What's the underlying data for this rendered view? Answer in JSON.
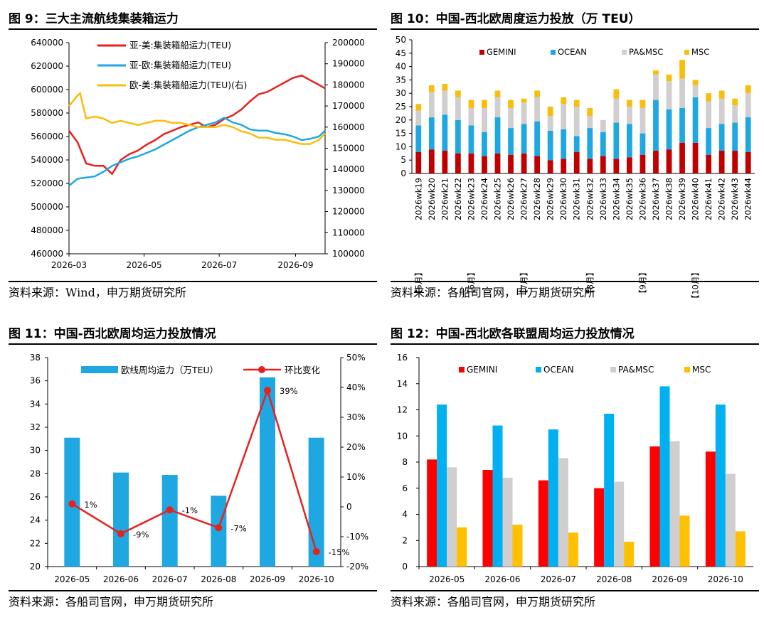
{
  "panels": [
    {
      "title": "图 9：三大主流航线集装箱运力",
      "source": "资料来源：Wind，申万期货研究所"
    },
    {
      "title": "图 10：中国-西北欧周度运力投放（万 TEU）",
      "source": "资料来源：各船司官网，申万期货研究所"
    },
    {
      "title": "图 11：中国-西北欧周均运力投放情况",
      "source": "资料来源：各船司官网，申万期货研究所"
    },
    {
      "title": "图 12：中国-西北欧各联盟周均运力投放情况",
      "source": "资料来源：各船司官网，申万期货研究所"
    }
  ],
  "chart_data": [
    {
      "type": "line",
      "x_ticks": [
        "2026-03",
        "2026-05",
        "2026-07",
        "2026-09"
      ],
      "x_range": [
        "2026-03",
        "2026-09-25"
      ],
      "ylim": [
        460000,
        640000
      ],
      "yticks": [
        "460000",
        "480000",
        "500000",
        "520000",
        "540000",
        "560000",
        "580000",
        "600000",
        "620000",
        "640000"
      ],
      "y2lim": [
        100000,
        200000
      ],
      "y2ticks": [
        "100000",
        "110000",
        "120000",
        "130000",
        "140000",
        "150000",
        "160000",
        "170000",
        "180000",
        "190000",
        "200000"
      ],
      "legend_position": "top-left",
      "grid": false,
      "series": [
        {
          "name": "亚-美:集装箱船运力(TEU)",
          "color": "#E8211D",
          "axis": "left",
          "x": [
            "2026-03-01",
            "2026-03-08",
            "2026-03-15",
            "2026-03-22",
            "2026-03-29",
            "2026-04-05",
            "2026-04-12",
            "2026-04-19",
            "2026-04-26",
            "2026-05-03",
            "2026-05-10",
            "2026-05-17",
            "2026-05-24",
            "2026-05-31",
            "2026-06-07",
            "2026-06-14",
            "2026-06-21",
            "2026-06-28",
            "2026-07-05",
            "2026-07-12",
            "2026-07-19",
            "2026-07-26",
            "2026-08-02",
            "2026-08-09",
            "2026-08-16",
            "2026-08-23",
            "2026-08-30",
            "2026-09-06",
            "2026-09-13",
            "2026-09-20",
            "2026-09-25"
          ],
          "y": [
            565000,
            555000,
            537000,
            535000,
            535000,
            528000,
            540000,
            545000,
            548000,
            553000,
            557000,
            562000,
            565000,
            568000,
            570000,
            572000,
            568000,
            570000,
            575000,
            578000,
            583000,
            590000,
            596000,
            598000,
            602000,
            606000,
            610000,
            612000,
            608000,
            604000,
            601000
          ]
        },
        {
          "name": "亚-欧:集装箱船运力(TEU)",
          "color": "#1FA7E1",
          "axis": "left",
          "x": [
            "2026-03-01",
            "2026-03-08",
            "2026-03-15",
            "2026-03-22",
            "2026-03-29",
            "2026-04-05",
            "2026-04-12",
            "2026-04-19",
            "2026-04-26",
            "2026-05-03",
            "2026-05-10",
            "2026-05-17",
            "2026-05-24",
            "2026-05-31",
            "2026-06-07",
            "2026-06-14",
            "2026-06-21",
            "2026-06-28",
            "2026-07-05",
            "2026-07-12",
            "2026-07-19",
            "2026-07-26",
            "2026-08-02",
            "2026-08-09",
            "2026-08-16",
            "2026-08-23",
            "2026-08-30",
            "2026-09-06",
            "2026-09-13",
            "2026-09-20",
            "2026-09-25"
          ],
          "y": [
            518000,
            524000,
            525000,
            526000,
            530000,
            535000,
            538000,
            541000,
            543000,
            546000,
            549000,
            553000,
            557000,
            561000,
            565000,
            568000,
            570000,
            572000,
            576000,
            572000,
            570000,
            566000,
            565000,
            565000,
            563000,
            562000,
            560000,
            557000,
            558000,
            560000,
            565000
          ]
        },
        {
          "name": "欧-美:集装箱船运力(TEU)(右)",
          "color": "#F9BE0B",
          "axis": "right",
          "x": [
            "2026-03-01",
            "2026-03-08",
            "2026-03-10",
            "2026-03-15",
            "2026-03-22",
            "2026-03-29",
            "2026-04-05",
            "2026-04-12",
            "2026-04-19",
            "2026-04-26",
            "2026-05-03",
            "2026-05-10",
            "2026-05-17",
            "2026-05-24",
            "2026-05-31",
            "2026-06-07",
            "2026-06-14",
            "2026-06-21",
            "2026-06-28",
            "2026-07-05",
            "2026-07-12",
            "2026-07-19",
            "2026-07-26",
            "2026-08-02",
            "2026-08-09",
            "2026-08-16",
            "2026-08-23",
            "2026-08-30",
            "2026-09-06",
            "2026-09-13",
            "2026-09-20",
            "2026-09-25"
          ],
          "y": [
            170000,
            175000,
            176000,
            164000,
            165000,
            164000,
            162000,
            163000,
            162000,
            161000,
            162000,
            163000,
            163000,
            162000,
            162000,
            161000,
            160000,
            160000,
            160000,
            161000,
            160000,
            158000,
            157000,
            155000,
            155000,
            154000,
            154000,
            153000,
            152000,
            152000,
            154000,
            157000
          ]
        }
      ]
    },
    {
      "type": "bar",
      "stacked": true,
      "ylim": [
        0,
        50
      ],
      "yticks": [
        "0",
        "5",
        "10",
        "15",
        "20",
        "25",
        "30",
        "35",
        "40",
        "45",
        "50"
      ],
      "categories": [
        "2026wk19",
        "2026wk20",
        "2026wk21",
        "2026wk22",
        "2026wk23",
        "2026wk24",
        "2026wk25",
        "2026wk26",
        "2026wk27",
        "2026wk28",
        "2026wk29",
        "2026wk30",
        "2026wk31",
        "2026wk32",
        "2026wk33",
        "2026wk34",
        "2026wk35",
        "2026wk36",
        "2026wk37",
        "2026wk38",
        "2026wk39",
        "2026wk40",
        "2026wk41",
        "2026wk42",
        "2026wk43",
        "2026wk44"
      ],
      "month_labels": [
        {
          "label": "【5月】",
          "at": "2026wk19"
        },
        {
          "label": "【6月】",
          "at": "2026wk23"
        },
        {
          "label": "【7月】",
          "at": "2026wk27"
        },
        {
          "label": "【8月】",
          "at": "2026wk32"
        },
        {
          "label": "【9月】",
          "at": "2026wk36"
        },
        {
          "label": "【10月】",
          "at": "2026wk40"
        }
      ],
      "legend_position": "top",
      "series": [
        {
          "name": "GEMINI",
          "color": "#C00000",
          "values": [
            8.0,
            9.0,
            8.5,
            7.5,
            7.5,
            6.5,
            7.5,
            7.0,
            7.5,
            6.5,
            5.0,
            5.5,
            8.0,
            5.5,
            6.5,
            5.5,
            6.0,
            7.0,
            8.5,
            9.0,
            11.5,
            11.5,
            7.0,
            8.5,
            8.5,
            8.0
          ]
        },
        {
          "name": "OCEAN",
          "color": "#1FA7E1",
          "values": [
            10.0,
            12.0,
            13.5,
            12.5,
            10.5,
            9.0,
            13.5,
            10.0,
            11.0,
            13.0,
            11.0,
            11.0,
            6.0,
            11.5,
            9.0,
            13.5,
            12.5,
            8.0,
            19.0,
            15.0,
            13.0,
            17.0,
            10.0,
            10.0,
            10.5,
            13.0
          ]
        },
        {
          "name": "PA&MSC",
          "color": "#D0CECE",
          "values": [
            5.5,
            9.5,
            9.0,
            8.5,
            6.5,
            9.0,
            7.5,
            7.5,
            8.0,
            9.0,
            5.5,
            9.5,
            11.0,
            4.5,
            4.5,
            9.0,
            6.5,
            9.5,
            9.5,
            10.5,
            11.0,
            4.5,
            10.0,
            9.5,
            6.5,
            9.0
          ]
        },
        {
          "name": "MSC",
          "color": "#F9BE0B",
          "values": [
            2.5,
            2.5,
            2.5,
            2.5,
            3.0,
            3.0,
            2.5,
            3.0,
            1.5,
            2.5,
            3.5,
            2.5,
            2.5,
            3.0,
            0,
            3.5,
            2.5,
            3.0,
            1.5,
            2.5,
            7.0,
            2.0,
            3.0,
            3.0,
            2.5,
            3.0
          ]
        }
      ]
    },
    {
      "type": "bar",
      "categories": [
        "2026-05",
        "2026-06",
        "2026-07",
        "2026-08",
        "2026-09",
        "2026-10"
      ],
      "ylim": [
        20,
        38
      ],
      "yticks": [
        "20",
        "22",
        "24",
        "26",
        "28",
        "30",
        "32",
        "34",
        "36",
        "38"
      ],
      "y2lim": [
        -20,
        50
      ],
      "y2ticks": [
        "-20%",
        "-10%",
        "0",
        "10%",
        "20%",
        "30%",
        "40%",
        "50%"
      ],
      "legend_position": "top",
      "series": [
        {
          "name": "欧线周均运力（万TEU）",
          "type": "bar",
          "color": "#1FA7E1",
          "axis": "left",
          "values": [
            31.1,
            28.1,
            27.9,
            26.1,
            36.3,
            31.1
          ]
        },
        {
          "name": "环比变化",
          "type": "line",
          "color": "#E8211D",
          "axis": "right",
          "values": [
            1,
            -9,
            -1,
            -7,
            39,
            -15
          ],
          "labels": [
            "1%",
            "-9%",
            "-1%",
            "-7%",
            "39%",
            "-15%"
          ]
        }
      ]
    },
    {
      "type": "bar",
      "categories": [
        "2026-05",
        "2026-06",
        "2026-07",
        "2026-08",
        "2026-09",
        "2026-10"
      ],
      "ylim": [
        0,
        16
      ],
      "yticks": [
        "0",
        "2",
        "4",
        "6",
        "8",
        "10",
        "12",
        "14",
        "16"
      ],
      "legend_position": "top",
      "series": [
        {
          "name": "GEMINI",
          "color": "#FF0000",
          "values": [
            8.2,
            7.4,
            6.6,
            6.0,
            9.2,
            8.8
          ]
        },
        {
          "name": "OCEAN",
          "color": "#00B0F0",
          "values": [
            12.4,
            10.8,
            10.5,
            11.7,
            13.8,
            12.4
          ]
        },
        {
          "name": "PA&MSC",
          "color": "#D0CECE",
          "values": [
            7.6,
            6.8,
            8.3,
            6.5,
            9.6,
            7.1
          ]
        },
        {
          "name": "MSC",
          "color": "#FFC000",
          "values": [
            3.0,
            3.2,
            2.6,
            1.9,
            3.9,
            2.7
          ]
        }
      ]
    }
  ]
}
